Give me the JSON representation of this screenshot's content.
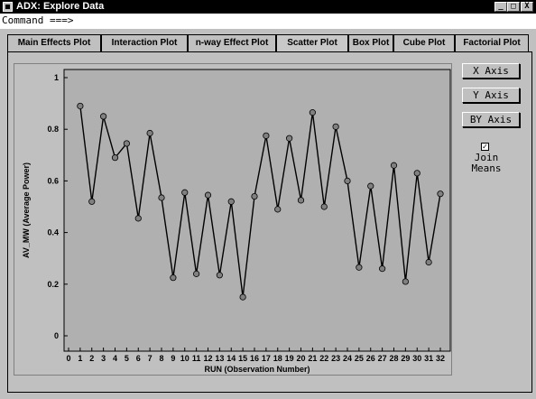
{
  "window": {
    "title": "ADX: Explore Data",
    "minimize_label": "_",
    "maximize_label": "□",
    "close_label": "X"
  },
  "command": {
    "prompt": "Command ===>",
    "value": ""
  },
  "tabs": [
    {
      "label": "Main Effects Plot",
      "active": false
    },
    {
      "label": "Interaction Plot",
      "active": false
    },
    {
      "label": "n-way Effect Plot",
      "active": false
    },
    {
      "label": "Scatter Plot",
      "active": true
    },
    {
      "label": "Box Plot",
      "active": false
    },
    {
      "label": "Cube Plot",
      "active": false
    },
    {
      "label": "Factorial Plot",
      "active": false
    }
  ],
  "side": {
    "x_axis_label": "X Axis",
    "y_axis_label": "Y Axis",
    "by_axis_label": "BY Axis",
    "join_means_checked": true,
    "join_means_label": "Join Means"
  },
  "colors": {
    "plot_bg": "#b0b0b0",
    "line": "#000000",
    "point": "#808080"
  },
  "chart_data": {
    "type": "line",
    "title": "",
    "xlabel": "RUN (Observation Number)",
    "ylabel": "AV_MW (Average Power)",
    "xlim": [
      0,
      32
    ],
    "ylim": [
      0,
      1
    ],
    "x_ticks": [
      0,
      1,
      2,
      3,
      4,
      5,
      6,
      7,
      8,
      9,
      10,
      11,
      12,
      13,
      14,
      15,
      16,
      17,
      18,
      19,
      20,
      21,
      22,
      23,
      24,
      25,
      26,
      27,
      28,
      29,
      30,
      31,
      32
    ],
    "y_ticks": [
      0,
      0.2,
      0.4,
      0.6,
      0.8,
      1
    ],
    "y_tick_labels": [
      "0",
      "0.2",
      "0.4",
      "0.6",
      "0.8",
      "1"
    ],
    "series": [
      {
        "x": [
          1,
          2,
          3,
          4,
          5,
          6,
          7,
          8,
          9,
          10,
          11,
          12,
          13,
          14,
          15,
          16,
          17,
          18,
          19,
          20,
          21,
          22,
          23,
          24,
          25,
          26,
          27,
          28,
          29,
          30,
          31,
          32
        ],
        "values": [
          0.89,
          0.52,
          0.85,
          0.69,
          0.745,
          0.455,
          0.785,
          0.535,
          0.225,
          0.555,
          0.24,
          0.545,
          0.235,
          0.52,
          0.15,
          0.54,
          0.775,
          0.49,
          0.765,
          0.525,
          0.865,
          0.5,
          0.81,
          0.6,
          0.265,
          0.58,
          0.26,
          0.66,
          0.21,
          0.63,
          0.285,
          0.55
        ]
      }
    ],
    "grid": false,
    "legend": "none"
  }
}
